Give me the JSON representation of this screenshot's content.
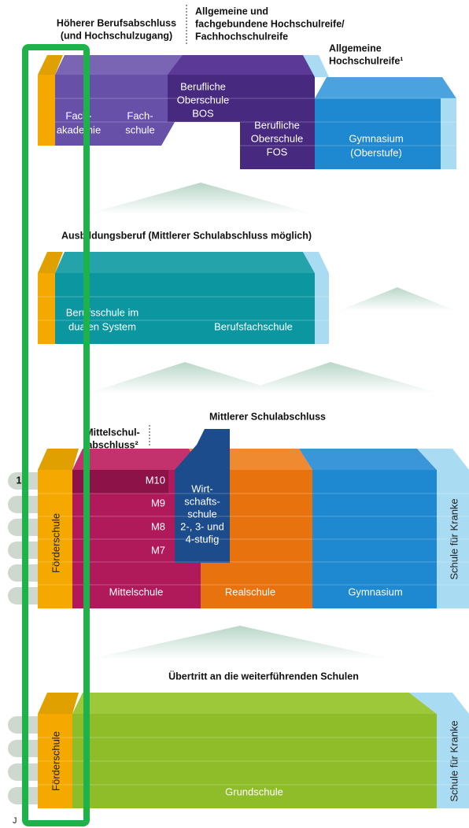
{
  "headings": {
    "higher_vocational": [
      "Höherer Berufsabschluss",
      "(und Hochschulzugang)"
    ],
    "university_entrance": [
      "Allgemeine und",
      "fachgebundene Hochschulreife/",
      "Fachhochschulreife"
    ],
    "general_entrance": [
      "Allgemeine",
      "Hochschulreife¹"
    ],
    "vocational_training": "Ausbildungsberuf (Mittlerer Schulabschluss möglich)",
    "intermediate": "Mittlerer Schulabschluss",
    "mittelschule_cert": [
      "Mittelschul-",
      "abschluss²"
    ],
    "transfer": "Übertritt an die weiterführenden Schulen"
  },
  "upper": {
    "fachakademie": [
      "Fach-",
      "akademie"
    ],
    "fachschule": [
      "Fach-",
      "schule"
    ],
    "bos": [
      "Berufliche",
      "Oberschule",
      "BOS"
    ],
    "fos": [
      "Berufliche",
      "Oberschule",
      "FOS"
    ],
    "gymnasium": [
      "Gymnasium",
      "(Oberstufe)"
    ]
  },
  "vocational": {
    "dual": [
      "Berufsschule im",
      "dualen System"
    ],
    "berufsfachschule": "Berufsfachschule"
  },
  "secondary": {
    "foerderschule": "Förderschule",
    "grades": [
      "M10",
      "M9",
      "M8",
      "M7"
    ],
    "wirtschaftsschule": [
      "Wirt-",
      "schafts-",
      "schule",
      "2-, 3- und",
      "4-stufig"
    ],
    "mittelschule": "Mittelschule",
    "realschule": "Realschule",
    "gymnasium": "Gymnasium",
    "krankenschule": "Schule für Kranke"
  },
  "primary": {
    "foerderschule": "Förderschule",
    "grundschule": "Grundschule",
    "krankenschule": "Schule für Kranke"
  },
  "side": {
    "grade_top": "1",
    "footer": "J"
  }
}
